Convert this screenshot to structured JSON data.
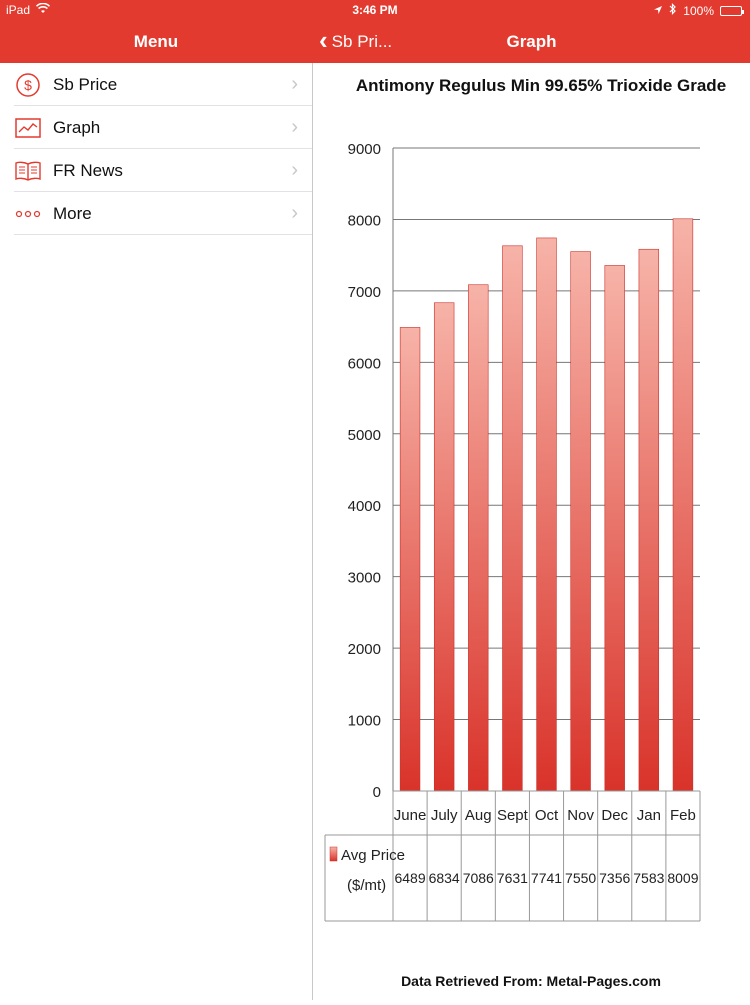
{
  "status_bar": {
    "device": "iPad",
    "time": "3:46 PM",
    "battery": "100%",
    "battery_level": 1.0
  },
  "nav": {
    "menu_title": "Menu",
    "back_label": "Sb Pri...",
    "detail_title": "Graph"
  },
  "sidebar": {
    "items": [
      {
        "label": "Sb Price",
        "icon": "dollar-circle-icon"
      },
      {
        "label": "Graph",
        "icon": "chart-icon"
      },
      {
        "label": "FR News",
        "icon": "book-icon"
      },
      {
        "label": "More",
        "icon": "more-dots-icon"
      }
    ]
  },
  "colors": {
    "accent": "#e33a2f",
    "bar_top": "#f7b3a8",
    "bar_bottom": "#d9332a",
    "battery": "#4cd964"
  },
  "chart_data": {
    "type": "bar",
    "title": "Antimony Regulus Min 99.65% Trioxide Grade",
    "categories": [
      "June",
      "July",
      "Aug",
      "Sept",
      "Oct",
      "Nov",
      "Dec",
      "Jan",
      "Feb"
    ],
    "series": [
      {
        "name": "Avg Price ($/mt)",
        "values": [
          6489,
          6834,
          7086,
          7631,
          7741,
          7550,
          7356,
          7583,
          8009
        ]
      }
    ],
    "yticks": [
      "0",
      "1000",
      "2000",
      "3000",
      "4000",
      "5000",
      "6000",
      "7000",
      "8000",
      "9000"
    ],
    "ylim": [
      0,
      9000
    ],
    "grid": true,
    "legend_placement": "data table below axis",
    "footer": "Data Retrieved From: Metal-Pages.com"
  }
}
